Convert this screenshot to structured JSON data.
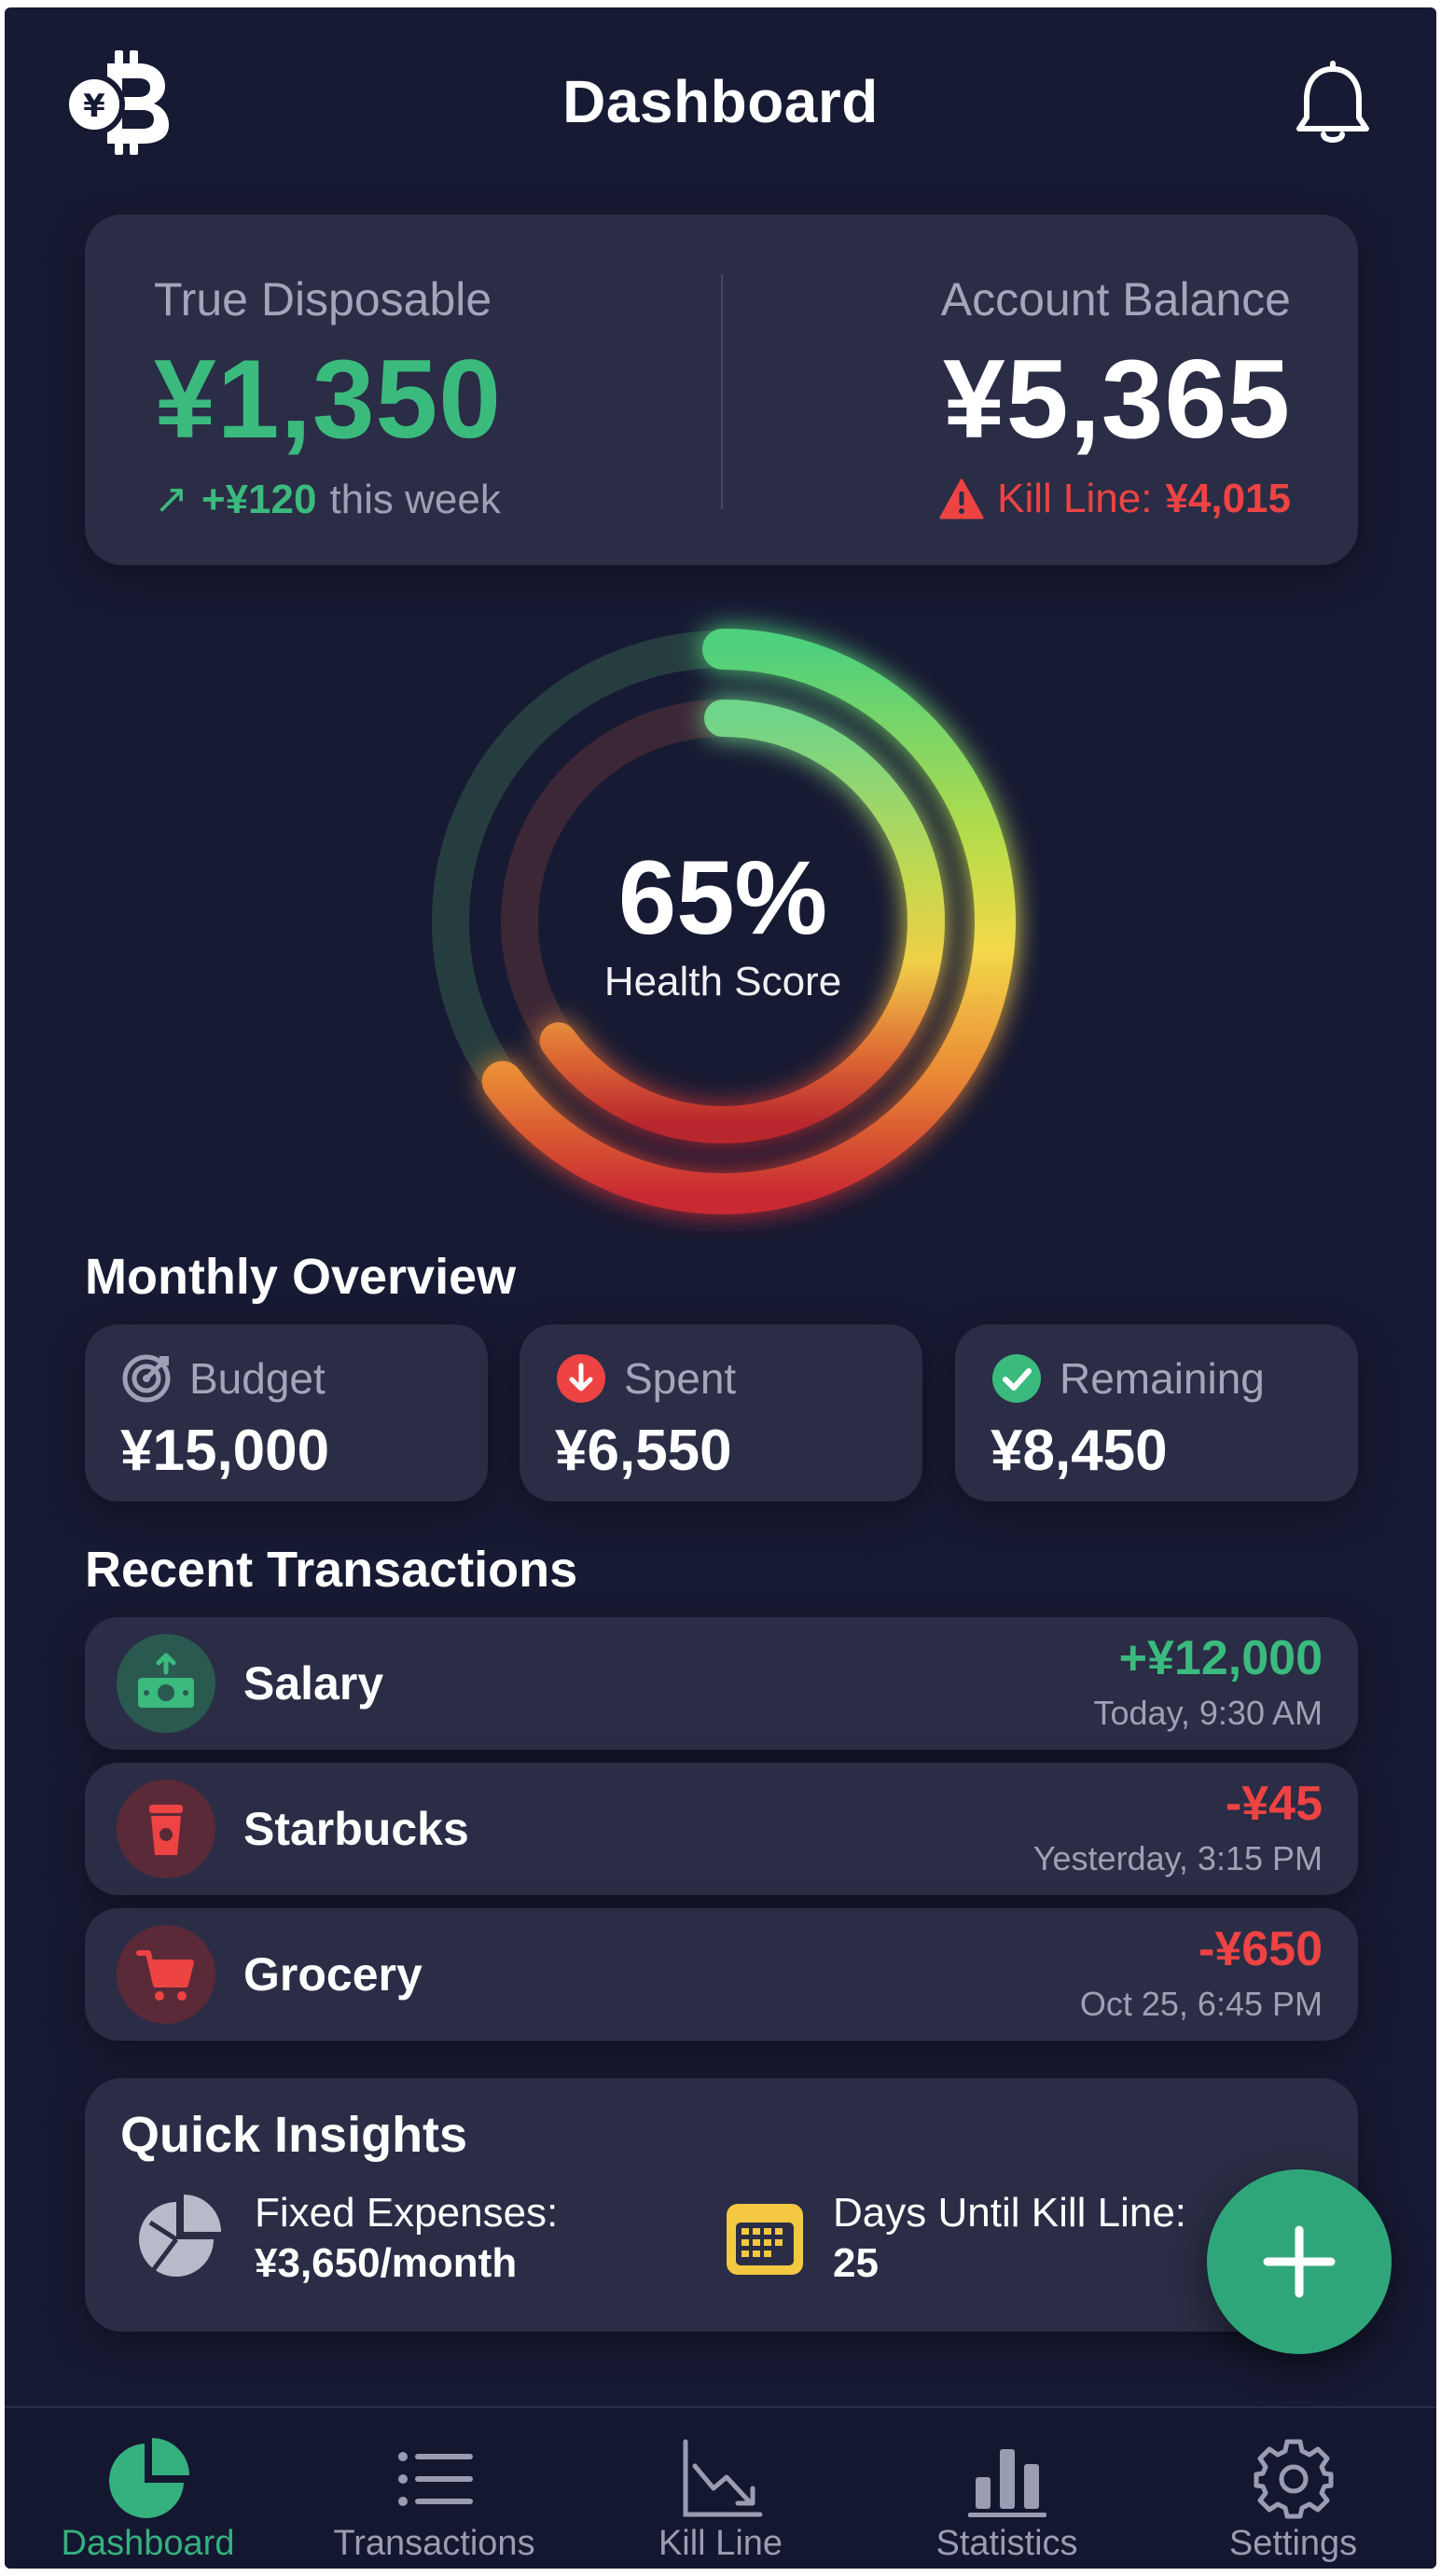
{
  "header": {
    "title": "Dashboard",
    "logo_icon": "bitcoin-yen-logo-icon",
    "bell_icon": "bell-icon"
  },
  "balance": {
    "disposable_label": "True Disposable",
    "disposable_amount": "¥1,350",
    "weekly_change_arrow": "↗",
    "weekly_change": "+¥120",
    "weekly_change_suffix": "this week",
    "account_label": "Account Balance",
    "account_amount": "¥5,365",
    "kill_line_label": "Kill Line:",
    "kill_line_value": "¥4,015"
  },
  "health": {
    "value": 0.65,
    "percent_text": "65%",
    "label": "Health Score"
  },
  "monthly": {
    "title": "Monthly Overview",
    "items": [
      {
        "icon": "target-icon",
        "label": "Budget",
        "value": "¥15,000"
      },
      {
        "icon": "arrow-down-circle-icon",
        "label": "Spent",
        "value": "¥6,550"
      },
      {
        "icon": "check-circle-icon",
        "label": "Remaining",
        "value": "¥8,450"
      }
    ]
  },
  "transactions": {
    "title": "Recent Transactions",
    "items": [
      {
        "icon": "cash-income-icon",
        "name": "Salary",
        "amount": "+¥12,000",
        "time": "Today, 9:30 AM",
        "type": "income"
      },
      {
        "icon": "coffee-cup-icon",
        "name": "Starbucks",
        "amount": "-¥45",
        "time": "Yesterday, 3:15 PM",
        "type": "expense"
      },
      {
        "icon": "shopping-cart-icon",
        "name": "Grocery",
        "amount": "-¥650",
        "time": "Oct 25, 6:45 PM",
        "type": "expense"
      }
    ]
  },
  "insights": {
    "title": "Quick Insights",
    "fixed_label": "Fixed Expenses:",
    "fixed_value": "¥3,650/month",
    "days_label": "Days Until Kill Line:",
    "days_value": "25"
  },
  "fab": {
    "icon": "plus-icon"
  },
  "nav": {
    "items": [
      {
        "icon": "pie-chart-icon",
        "label": "Dashboard",
        "active": true
      },
      {
        "icon": "list-icon",
        "label": "Transactions",
        "active": false
      },
      {
        "icon": "trend-down-chart-icon",
        "label": "Kill Line",
        "active": false
      },
      {
        "icon": "bar-chart-icon",
        "label": "Statistics",
        "active": false
      },
      {
        "icon": "gear-icon",
        "label": "Settings",
        "active": false
      }
    ]
  },
  "colors": {
    "background": "#171a33",
    "card": "#2a2d45",
    "positive": "#3bba7e",
    "negative": "#ee4343",
    "accent": "#2fa67a",
    "warning": "#f5c842"
  }
}
